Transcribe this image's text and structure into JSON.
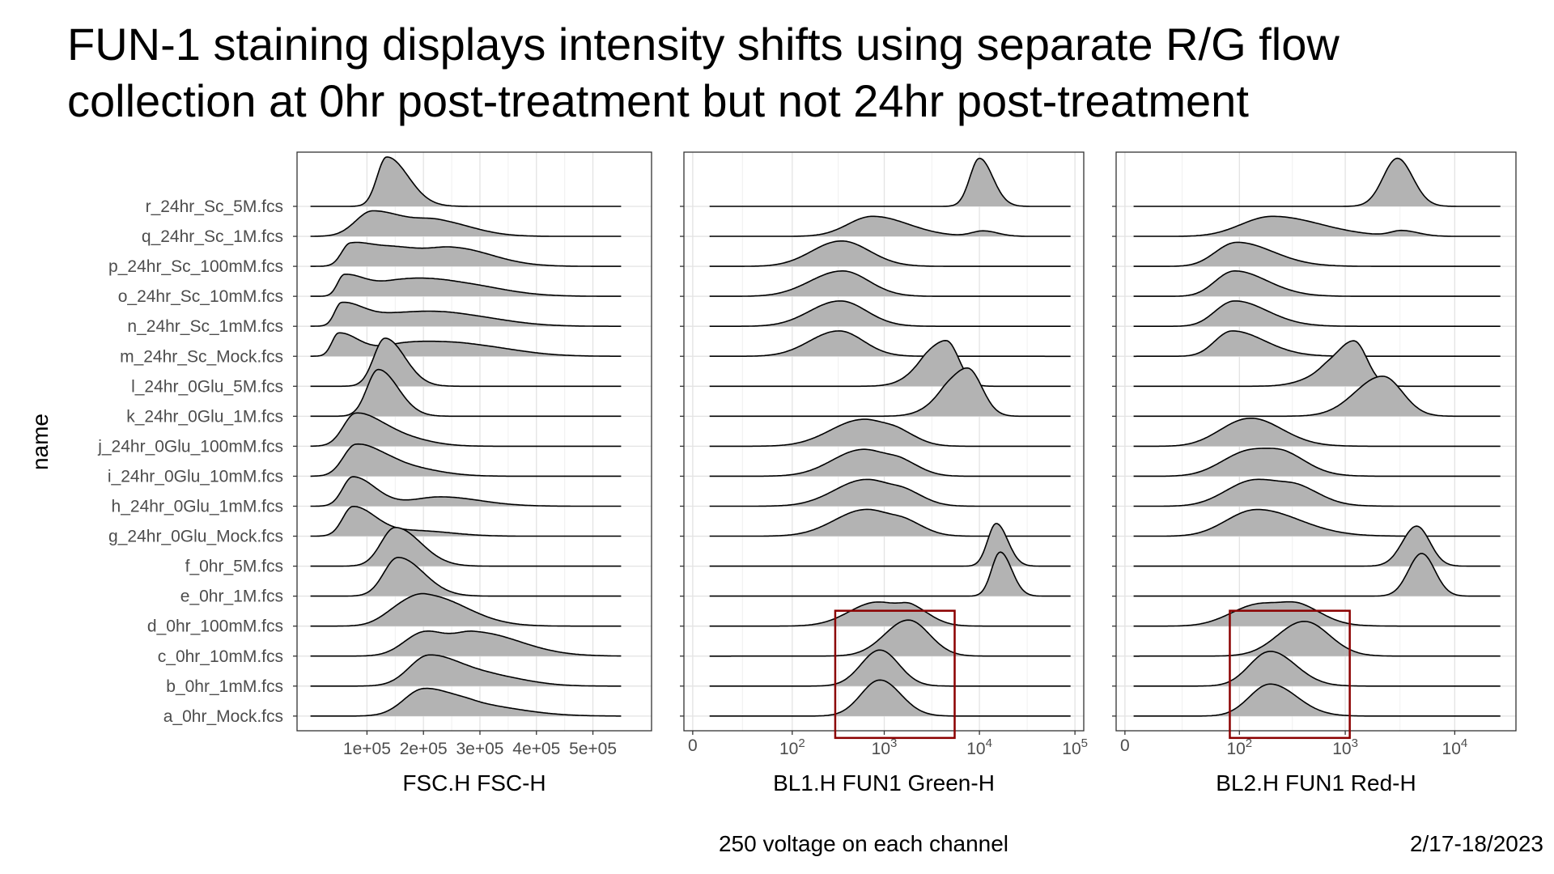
{
  "slide": {
    "title_line1": "FUN-1 staining displays intensity shifts using separate R/G flow",
    "title_line2": "collection at 0hr post-treatment but not 24hr post-treatment",
    "footer_note": "250 voltage on each channel",
    "footer_date": "2/17-18/2023"
  },
  "chart_data": {
    "type": "area",
    "subtype": "ridgeline",
    "ylabel": "name",
    "grid": true,
    "fill_color": "#b3b3b3",
    "line_color": "#000000",
    "highlight_color": "#8b0000",
    "rows": [
      "r_24hr_Sc_5M.fcs",
      "q_24hr_Sc_1M.fcs",
      "p_24hr_Sc_100mM.fcs",
      "o_24hr_Sc_10mM.fcs",
      "n_24hr_Sc_1mM.fcs",
      "m_24hr_Sc_Mock.fcs",
      "l_24hr_0Glu_5M.fcs",
      "k_24hr_0Glu_1M.fcs",
      "j_24hr_0Glu_100mM.fcs",
      "i_24hr_0Glu_10mM.fcs",
      "h_24hr_0Glu_1mM.fcs",
      "g_24hr_0Glu_Mock.fcs",
      "f_0hr_5M.fcs",
      "e_0hr_1M.fcs",
      "d_0hr_100mM.fcs",
      "c_0hr_10mM.fcs",
      "b_0hr_1mM.fcs",
      "a_0hr_Mock.fcs"
    ],
    "panels": [
      {
        "xlabel": "FSC.H FSC-H",
        "scale": "linear",
        "xlim": [
          -10000,
          590000
        ],
        "ticks": [
          100000,
          200000,
          300000,
          400000,
          500000
        ],
        "tick_labels": [
          "1e+05",
          "2e+05",
          "3e+05",
          "4e+05",
          "5e+05"
        ],
        "curves": [
          {
            "xmin": 0,
            "xmax": 550000,
            "peaks": [
              [
                135000,
                1.85,
                17000,
                38000
              ]
            ]
          },
          {
            "xmin": 0,
            "xmax": 550000,
            "peaks": [
              [
                110000,
                0.95,
                30000,
                60000
              ],
              [
                230000,
                0.5,
                40000,
                60000
              ]
            ]
          },
          {
            "xmin": 0,
            "xmax": 550000,
            "peaks": [
              [
                70000,
                0.8,
                15000,
                40000
              ],
              [
                150000,
                0.55,
                40000,
                40000
              ],
              [
                250000,
                0.7,
                50000,
                70000
              ]
            ]
          },
          {
            "xmin": 0,
            "xmax": 550000,
            "peaks": [
              [
                60000,
                0.8,
                12000,
                40000
              ],
              [
                160000,
                0.45,
                40000,
                50000
              ],
              [
                250000,
                0.5,
                60000,
                80000
              ]
            ]
          },
          {
            "xmin": 0,
            "xmax": 550000,
            "peaks": [
              [
                55000,
                0.85,
                12000,
                40000
              ],
              [
                160000,
                0.4,
                50000,
                60000
              ],
              [
                260000,
                0.4,
                60000,
                80000
              ]
            ]
          },
          {
            "xmin": 0,
            "xmax": 550000,
            "peaks": [
              [
                50000,
                0.85,
                12000,
                35000
              ],
              [
                170000,
                0.45,
                50000,
                60000
              ],
              [
                280000,
                0.4,
                60000,
                80000
              ]
            ]
          },
          {
            "xmin": 0,
            "xmax": 550000,
            "peaks": [
              [
                132000,
                1.8,
                20000,
                35000
              ]
            ]
          },
          {
            "xmin": 0,
            "xmax": 550000,
            "peaks": [
              [
                120000,
                1.75,
                20000,
                35000
              ]
            ]
          },
          {
            "xmin": 0,
            "xmax": 550000,
            "peaks": [
              [
                80000,
                1.2,
                22000,
                45000
              ],
              [
                160000,
                0.3,
                40000,
                50000
              ]
            ]
          },
          {
            "xmin": 0,
            "xmax": 550000,
            "peaks": [
              [
                80000,
                1.15,
                22000,
                45000
              ],
              [
                160000,
                0.35,
                40000,
                60000
              ]
            ]
          },
          {
            "xmin": 0,
            "xmax": 550000,
            "peaks": [
              [
                75000,
                1.1,
                18000,
                40000
              ],
              [
                230000,
                0.35,
                50000,
                70000
              ]
            ]
          },
          {
            "xmin": 0,
            "xmax": 550000,
            "peaks": [
              [
                75000,
                1.1,
                18000,
                40000
              ],
              [
                190000,
                0.2,
                50000,
                60000
              ]
            ]
          },
          {
            "xmin": 0,
            "xmax": 550000,
            "peaks": [
              [
                150000,
                1.45,
                25000,
                45000
              ]
            ]
          },
          {
            "xmin": 0,
            "xmax": 550000,
            "peaks": [
              [
                155000,
                1.45,
                25000,
                45000
              ]
            ]
          },
          {
            "xmin": 0,
            "xmax": 550000,
            "peaks": [
              [
                205000,
                1.15,
                40000,
                70000
              ],
              [
                150000,
                0.3,
                30000,
                30000
              ]
            ]
          },
          {
            "xmin": 0,
            "xmax": 550000,
            "peaks": [
              [
                200000,
                0.85,
                35000,
                35000
              ],
              [
                290000,
                0.9,
                40000,
                80000
              ]
            ]
          },
          {
            "xmin": 0,
            "xmax": 550000,
            "peaks": [
              [
                210000,
                1.15,
                35000,
                60000
              ],
              [
                330000,
                0.3,
                50000,
                60000
              ]
            ]
          },
          {
            "xmin": 0,
            "xmax": 550000,
            "peaks": [
              [
                200000,
                1.0,
                35000,
                50000
              ],
              [
                290000,
                0.4,
                40000,
                80000
              ]
            ]
          }
        ]
      },
      {
        "xlabel": "BL1.H FUN1 Green-H",
        "scale": "biexponential",
        "xlim": [
          0,
          100000
        ],
        "ticks": [
          0,
          100,
          1000,
          10000,
          100000
        ],
        "tick_labels": [
          "0",
          "10^2",
          "10^3",
          "10^4",
          "10^5"
        ],
        "box": {
          "x0": 300,
          "x1": 5500,
          "row_top": "d_0hr_100mM.fcs",
          "row_bottom": "a_0hr_Mock.fcs"
        },
        "curves": [
          {
            "xmin": 5,
            "xmax": 90000,
            "peaks": [
              [
                10000,
                1.8,
                0.1,
                0.14
              ]
            ]
          },
          {
            "xmin": 5,
            "xmax": 90000,
            "peaks": [
              [
                750,
                0.75,
                0.26,
                0.38
              ],
              [
                11000,
                0.2,
                0.12,
                0.15
              ]
            ]
          },
          {
            "xmin": 5,
            "xmax": 90000,
            "peaks": [
              [
                350,
                0.95,
                0.32,
                0.3
              ]
            ]
          },
          {
            "xmin": 5,
            "xmax": 90000,
            "peaks": [
              [
                360,
                0.95,
                0.35,
                0.28
              ]
            ]
          },
          {
            "xmin": 5,
            "xmax": 90000,
            "peaks": [
              [
                340,
                0.95,
                0.33,
                0.28
              ]
            ]
          },
          {
            "xmin": 5,
            "xmax": 90000,
            "peaks": [
              [
                330,
                0.95,
                0.32,
                0.26
              ]
            ]
          },
          {
            "xmin": 5,
            "xmax": 90000,
            "peaks": [
              [
                4500,
                1.7,
                0.2,
                0.13
              ],
              [
                2500,
                0.3,
                0.2,
                0.1
              ]
            ]
          },
          {
            "xmin": 5,
            "xmax": 90000,
            "peaks": [
              [
                7500,
                1.8,
                0.2,
                0.15
              ],
              [
                4000,
                0.3,
                0.2,
                0.1
              ]
            ]
          },
          {
            "xmin": 5,
            "xmax": 90000,
            "peaks": [
              [
                600,
                1.0,
                0.35,
                0.28
              ],
              [
                1500,
                0.3,
                0.15,
                0.2
              ]
            ]
          },
          {
            "xmin": 5,
            "xmax": 90000,
            "peaks": [
              [
                600,
                1.0,
                0.33,
                0.28
              ],
              [
                1600,
                0.35,
                0.15,
                0.2
              ]
            ]
          },
          {
            "xmin": 5,
            "xmax": 90000,
            "peaks": [
              [
                650,
                1.0,
                0.34,
                0.3
              ],
              [
                1800,
                0.3,
                0.15,
                0.2
              ]
            ]
          },
          {
            "xmin": 5,
            "xmax": 90000,
            "peaks": [
              [
                650,
                1.0,
                0.34,
                0.3
              ],
              [
                1800,
                0.3,
                0.15,
                0.2
              ]
            ]
          },
          {
            "xmin": 5,
            "xmax": 90000,
            "peaks": [
              [
                15000,
                1.6,
                0.09,
                0.12
              ]
            ]
          },
          {
            "xmin": 5,
            "xmax": 90000,
            "peaks": [
              [
                16500,
                1.65,
                0.09,
                0.12
              ]
            ]
          },
          {
            "xmin": 5,
            "xmax": 90000,
            "peaks": [
              [
                850,
                0.9,
                0.3,
                0.3
              ],
              [
                2000,
                0.4,
                0.12,
                0.2
              ]
            ]
          },
          {
            "xmin": 5,
            "xmax": 90000,
            "peaks": [
              [
                1800,
                1.35,
                0.25,
                0.22
              ]
            ]
          },
          {
            "xmin": 5,
            "xmax": 90000,
            "peaks": [
              [
                900,
                1.35,
                0.2,
                0.2
              ]
            ]
          },
          {
            "xmin": 5,
            "xmax": 90000,
            "peaks": [
              [
                900,
                1.35,
                0.2,
                0.22
              ]
            ]
          }
        ]
      },
      {
        "xlabel": "BL2.H FUN1 Red-H",
        "scale": "biexponential",
        "xlim": [
          0,
          30000
        ],
        "ticks": [
          0,
          100,
          1000,
          10000
        ],
        "tick_labels": [
          "0",
          "10^2",
          "10^3",
          "10^4"
        ],
        "box": {
          "x0": 80,
          "x1": 1100,
          "row_top": "d_0hr_100mM.fcs",
          "row_bottom": "a_0hr_Mock.fcs"
        },
        "curves": [
          {
            "xmin": 2,
            "xmax": 26000,
            "peaks": [
              [
                3000,
                1.8,
                0.13,
                0.14
              ]
            ]
          },
          {
            "xmin": 2,
            "xmax": 26000,
            "peaks": [
              [
                210,
                0.75,
                0.3,
                0.45
              ],
              [
                3300,
                0.2,
                0.1,
                0.15
              ]
            ]
          },
          {
            "xmin": 2,
            "xmax": 26000,
            "peaks": [
              [
                95,
                0.9,
                0.22,
                0.35
              ]
            ]
          },
          {
            "xmin": 2,
            "xmax": 26000,
            "peaks": [
              [
                90,
                0.95,
                0.2,
                0.32
              ]
            ]
          },
          {
            "xmin": 2,
            "xmax": 26000,
            "peaks": [
              [
                90,
                0.95,
                0.2,
                0.32
              ]
            ]
          },
          {
            "xmin": 2,
            "xmax": 26000,
            "peaks": [
              [
                85,
                0.95,
                0.18,
                0.32
              ]
            ]
          },
          {
            "xmin": 2,
            "xmax": 26000,
            "peaks": [
              [
                1200,
                1.7,
                0.18,
                0.12
              ],
              [
                600,
                0.3,
                0.2,
                0.1
              ]
            ]
          },
          {
            "xmin": 2,
            "xmax": 26000,
            "peaks": [
              [
                2200,
                1.5,
                0.25,
                0.18
              ]
            ]
          },
          {
            "xmin": 2,
            "xmax": 26000,
            "peaks": [
              [
                130,
                1.05,
                0.3,
                0.3
              ]
            ]
          },
          {
            "xmin": 2,
            "xmax": 26000,
            "peaks": [
              [
                140,
                1.0,
                0.3,
                0.33
              ],
              [
                300,
                0.3,
                0.15,
                0.2
              ]
            ]
          },
          {
            "xmin": 2,
            "xmax": 26000,
            "peaks": [
              [
                150,
                1.0,
                0.3,
                0.35
              ],
              [
                400,
                0.3,
                0.15,
                0.2
              ]
            ]
          },
          {
            "xmin": 2,
            "xmax": 26000,
            "peaks": [
              [
                150,
                1.0,
                0.3,
                0.4
              ]
            ]
          },
          {
            "xmin": 2,
            "xmax": 26000,
            "peaks": [
              [
                4500,
                1.5,
                0.13,
                0.12
              ]
            ]
          },
          {
            "xmin": 2,
            "xmax": 26000,
            "peaks": [
              [
                5000,
                1.6,
                0.12,
                0.12
              ]
            ]
          },
          {
            "xmin": 2,
            "xmax": 26000,
            "peaks": [
              [
                170,
                0.85,
                0.3,
                0.35
              ],
              [
                400,
                0.35,
                0.15,
                0.2
              ]
            ]
          },
          {
            "xmin": 2,
            "xmax": 26000,
            "peaks": [
              [
                420,
                1.3,
                0.25,
                0.23
              ]
            ]
          },
          {
            "xmin": 2,
            "xmax": 26000,
            "peaks": [
              [
                200,
                1.3,
                0.2,
                0.24
              ]
            ]
          },
          {
            "xmin": 2,
            "xmax": 26000,
            "peaks": [
              [
                200,
                1.2,
                0.2,
                0.25
              ]
            ]
          }
        ]
      }
    ]
  }
}
